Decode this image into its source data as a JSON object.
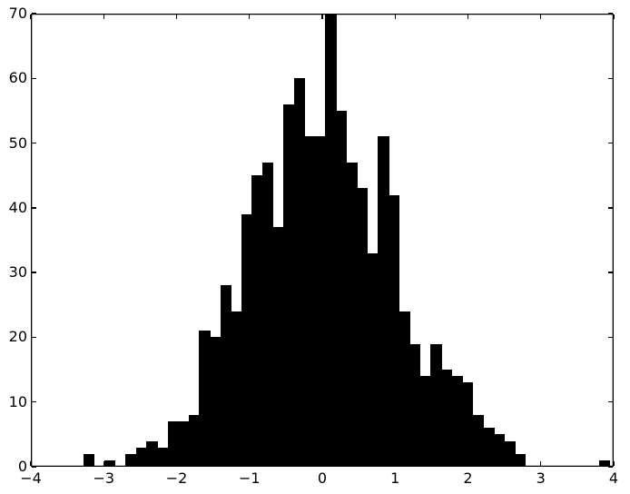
{
  "chart_data": {
    "type": "bar",
    "subtype": "histogram",
    "title": "",
    "xlabel": "",
    "ylabel": "",
    "xlim": [
      -4,
      4
    ],
    "ylim": [
      0,
      70
    ],
    "grid": false,
    "legend": null,
    "bar_color": "#000000",
    "background_color": "#ffffff",
    "frame_color": "#000000",
    "bins": {
      "start": -3.28,
      "width": 0.1445,
      "count": 50
    },
    "values": [
      2,
      0,
      1,
      0,
      2,
      3,
      4,
      3,
      7,
      7,
      8,
      21,
      20,
      28,
      24,
      39,
      45,
      47,
      37,
      56,
      60,
      51,
      51,
      70,
      55,
      47,
      43,
      33,
      51,
      42,
      24,
      19,
      14,
      19,
      15,
      14,
      13,
      8,
      6,
      5,
      4,
      2,
      0,
      0,
      0,
      0,
      0,
      0,
      0,
      1
    ],
    "x_ticks": [
      {
        "value": -4,
        "label": "−4"
      },
      {
        "value": -3,
        "label": "−3"
      },
      {
        "value": -2,
        "label": "−2"
      },
      {
        "value": -1,
        "label": "−1"
      },
      {
        "value": 0,
        "label": "0"
      },
      {
        "value": 1,
        "label": "1"
      },
      {
        "value": 2,
        "label": "2"
      },
      {
        "value": 3,
        "label": "3"
      },
      {
        "value": 4,
        "label": "4"
      }
    ],
    "y_ticks": [
      {
        "value": 0,
        "label": "0"
      },
      {
        "value": 10,
        "label": "10"
      },
      {
        "value": 20,
        "label": "20"
      },
      {
        "value": 30,
        "label": "30"
      },
      {
        "value": 40,
        "label": "40"
      },
      {
        "value": 50,
        "label": "50"
      },
      {
        "value": 60,
        "label": "60"
      },
      {
        "value": 70,
        "label": "70"
      }
    ],
    "tick_direction": "in"
  }
}
